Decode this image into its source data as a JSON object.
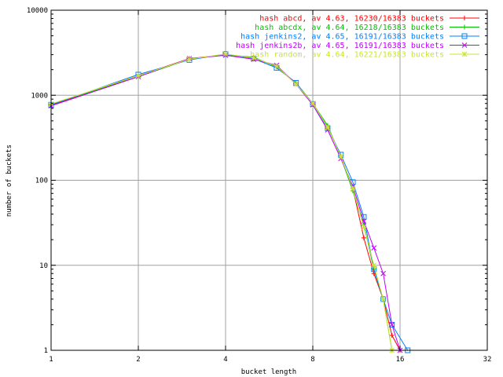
{
  "chart_data": {
    "type": "line",
    "title": "",
    "xlabel": "bucket length",
    "ylabel": "number of buckets",
    "x_scale": "log2",
    "y_scale": "log10",
    "xlim": [
      1,
      32
    ],
    "ylim": [
      1,
      10000
    ],
    "x_ticks": [
      "1",
      "2",
      "4",
      "8",
      "16",
      "32"
    ],
    "y_ticks": [
      "1",
      "10",
      "100",
      "1000",
      "10000"
    ],
    "grid": true,
    "legend_position": "top-right",
    "series": [
      {
        "name": "hash abcd, av 4.63, 16230/16383 buckets",
        "color": "#ff0000",
        "marker": "plus",
        "x": [
          1,
          2,
          3,
          4,
          5,
          6,
          7,
          8,
          9,
          10,
          11,
          12,
          13,
          14,
          15,
          16
        ],
        "y": [
          760,
          1700,
          2700,
          3000,
          2750,
          2200,
          1350,
          780,
          430,
          190,
          80,
          21,
          8,
          4,
          1.5,
          1
        ]
      },
      {
        "name": "hash abcdx, av 4.64, 16218/16383 buckets",
        "color": "#00c000",
        "marker": "plus",
        "x": [
          1,
          2,
          3,
          4,
          5,
          6,
          7,
          8,
          9,
          10,
          11,
          12,
          13,
          14,
          15
        ],
        "y": [
          780,
          1650,
          2650,
          3000,
          2800,
          2150,
          1400,
          800,
          440,
          185,
          75,
          30,
          9,
          4,
          1
        ]
      },
      {
        "name": "hash jenkins2, av 4.65, 16191/16383 buckets",
        "color": "#0080ff",
        "marker": "square",
        "x": [
          1,
          2,
          3,
          4,
          5,
          6,
          7,
          8,
          9,
          10,
          11,
          12,
          13,
          14,
          15,
          17
        ],
        "y": [
          770,
          1750,
          2600,
          3050,
          2700,
          2100,
          1400,
          790,
          410,
          200,
          95,
          37,
          9,
          4,
          2,
          1
        ]
      },
      {
        "name": "hash jenkins2b, av 4.65, 16191/16383 buckets",
        "color": "#c000ff",
        "marker": "cross",
        "x": [
          1,
          2,
          3,
          4,
          5,
          6,
          7,
          8,
          9,
          10,
          11,
          12,
          13,
          14,
          15,
          16
        ],
        "y": [
          750,
          1650,
          2700,
          2950,
          2650,
          2250,
          1350,
          770,
          390,
          180,
          85,
          33,
          16,
          8,
          2,
          1
        ]
      },
      {
        "name": "hash random, av 4.64, 16221/16383 buckets",
        "color": "#c8e632",
        "marker": "star",
        "x": [
          1,
          2,
          3,
          4,
          5,
          6,
          7,
          8,
          9,
          10,
          11,
          12,
          13,
          14,
          15
        ],
        "y": [
          790,
          1700,
          2650,
          3050,
          2750,
          2200,
          1350,
          800,
          420,
          190,
          80,
          28,
          10,
          4,
          1
        ]
      }
    ]
  }
}
